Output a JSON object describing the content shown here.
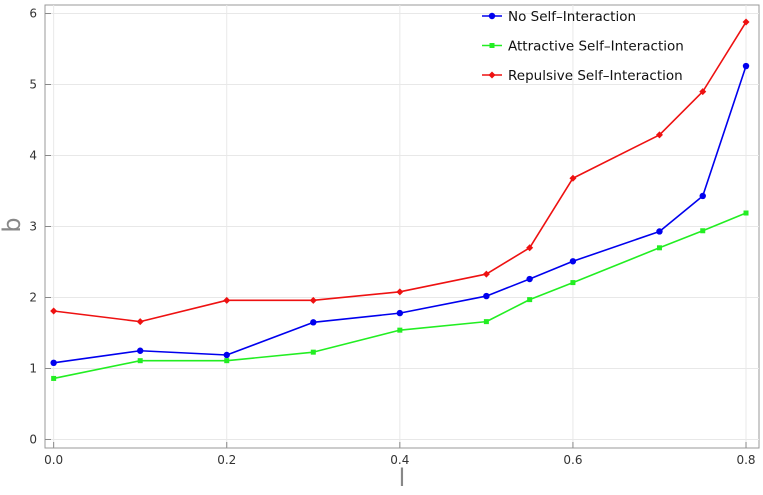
{
  "chart_data": {
    "type": "line",
    "title": "",
    "xlabel": "l",
    "ylabel": "b",
    "xlim": [
      -0.01,
      0.815
    ],
    "ylim": [
      -0.12,
      6.12
    ],
    "xticks": [
      0.0,
      0.2,
      0.4,
      0.6,
      0.8
    ],
    "xtick_labels": [
      "0.0",
      "0.2",
      "0.4",
      "0.6",
      "0.8"
    ],
    "yticks": [
      0,
      1,
      2,
      3,
      4,
      5,
      6
    ],
    "ytick_labels": [
      "0",
      "1",
      "2",
      "3",
      "4",
      "5",
      "6"
    ],
    "grid": true,
    "legend_position": "top-right",
    "x": [
      0.0,
      0.1,
      0.2,
      0.3,
      0.4,
      0.5,
      0.55,
      0.6,
      0.7,
      0.75,
      0.8
    ],
    "series": [
      {
        "name": "No Self–Interaction",
        "color": "#0000ee",
        "marker": "circle",
        "values": [
          1.08,
          1.25,
          1.19,
          1.65,
          1.78,
          2.02,
          2.26,
          2.51,
          2.93,
          3.43,
          5.26
        ]
      },
      {
        "name": "Attractive Self–Interaction",
        "color": "#22ee22",
        "marker": "square",
        "values": [
          0.86,
          1.11,
          1.11,
          1.23,
          1.54,
          1.66,
          1.97,
          2.21,
          2.7,
          2.94,
          3.19
        ]
      },
      {
        "name": "Repulsive Self–Interaction",
        "color": "#ee1111",
        "marker": "diamond",
        "values": [
          1.81,
          1.66,
          1.96,
          1.96,
          2.08,
          2.33,
          2.7,
          3.68,
          4.29,
          4.9,
          5.88
        ]
      }
    ]
  }
}
